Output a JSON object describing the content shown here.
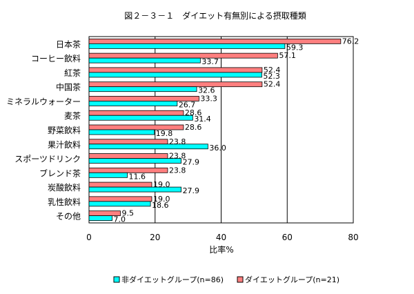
{
  "chart_data": {
    "type": "bar",
    "orientation": "horizontal",
    "title": "図２－３－１　ダイエット有無別による摂取種類",
    "xlabel": "比率%",
    "ylabel": "",
    "xlim": [
      0,
      80
    ],
    "xticks": [
      0,
      20,
      40,
      60,
      80
    ],
    "grid": true,
    "legend_position": "bottom",
    "categories": [
      "日本茶",
      "コーヒー飲料",
      "紅茶",
      "中国茶",
      "ミネラルウォーター",
      "麦茶",
      "野菜飲料",
      "果汁飲料",
      "スポーツドリンク",
      "ブレンド茶",
      "炭酸飲料",
      "乳性飲料",
      "その他"
    ],
    "series": [
      {
        "name": "ダイエットグループ(n=21)",
        "color": "#FF7F7F",
        "values": [
          76.2,
          57.1,
          52.4,
          52.4,
          33.3,
          28.6,
          28.6,
          23.8,
          23.8,
          23.8,
          19.0,
          19.0,
          9.5
        ]
      },
      {
        "name": "非ダイエットグループ(n=86)",
        "color": "#00FFFF",
        "values": [
          59.3,
          33.7,
          52.3,
          32.6,
          26.7,
          31.4,
          19.8,
          36.0,
          27.9,
          11.6,
          27.9,
          18.6,
          7.0
        ]
      }
    ],
    "value_labels": {
      "diet": [
        "76.2",
        "57.1",
        "52.4",
        "52.4",
        "33.3",
        "28.6",
        "28.6",
        "23.8",
        "23.8",
        "23.8",
        "19.0",
        "19.0",
        "9.5"
      ],
      "non_diet": [
        "59.3",
        "33.7",
        "52.3",
        "32.6",
        "26.7",
        "31.4",
        "19.8",
        "36.0",
        "27.9",
        "11.6",
        "27.9",
        "18.6",
        "7.0"
      ]
    },
    "legend": {
      "non_diet": "非ダイエットグループ(n=86)",
      "diet": "ダイエットグループ(n=21)"
    }
  }
}
